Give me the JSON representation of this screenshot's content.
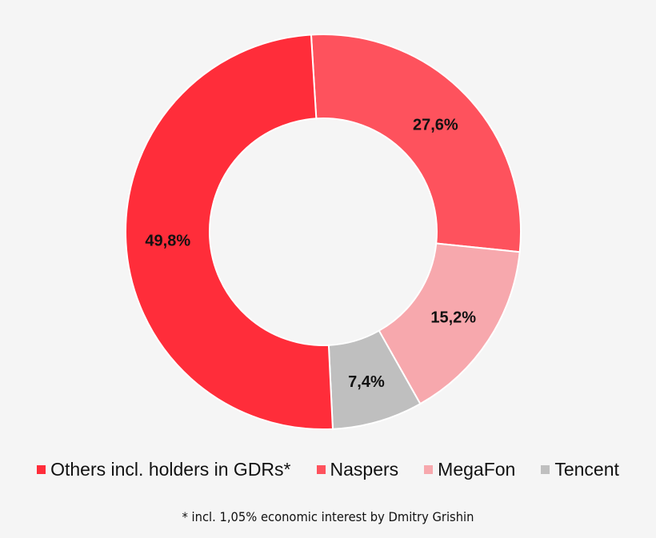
{
  "chart_data": {
    "type": "pie",
    "donut": true,
    "categories": [
      "Naspers",
      "MegaFon",
      "Tencent",
      "Others incl. holders in GDRs*"
    ],
    "values": [
      27.6,
      15.2,
      7.4,
      49.8
    ],
    "data_labels": [
      "27,6%",
      "15,2%",
      "7,4%",
      "49,8%"
    ],
    "colors": [
      "#fe525d",
      "#f7a8ad",
      "#bfbfbf",
      "#ff2d3a"
    ],
    "legend": {
      "placement": "bottom",
      "entries": [
        {
          "label": "Others incl. holders in GDRs*",
          "color": "#ff2d3a"
        },
        {
          "label": "Naspers",
          "color": "#fe525d"
        },
        {
          "label": "MegaFon",
          "color": "#f7a8ad"
        },
        {
          "label": "Tencent",
          "color": "#bfbfbf"
        }
      ]
    },
    "footnote": "* incl. 1,05% economic interest by Dmitry Grishin"
  }
}
